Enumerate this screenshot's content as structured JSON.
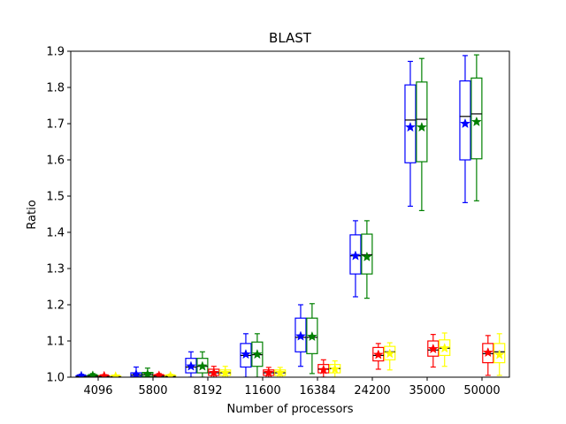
{
  "chart_data": {
    "type": "box",
    "title": "BLAST",
    "xlabel": "Number of processors",
    "ylabel": "Ratio",
    "ylim": [
      1.0,
      1.9
    ],
    "yticks": [
      "1.0",
      "1.1",
      "1.2",
      "1.3",
      "1.4",
      "1.5",
      "1.6",
      "1.7",
      "1.8",
      "1.9"
    ],
    "categories": [
      "4096",
      "5800",
      "8192",
      "11600",
      "16384",
      "24200",
      "35000",
      "50000"
    ],
    "grid": false,
    "legend": "none",
    "mean_marker": "star",
    "series": [
      {
        "color": "#0000ff",
        "boxes": [
          {
            "whislo": 1.0,
            "q1": 1.0,
            "med": 1.002,
            "q3": 1.004,
            "whishi": 1.008,
            "mean": 1.003
          },
          {
            "whislo": 1.0,
            "q1": 1.002,
            "med": 1.006,
            "q3": 1.012,
            "whishi": 1.028,
            "mean": 1.008
          },
          {
            "whislo": 1.0,
            "q1": 1.012,
            "med": 1.028,
            "q3": 1.052,
            "whishi": 1.07,
            "mean": 1.03
          },
          {
            "whislo": 1.0,
            "q1": 1.028,
            "med": 1.06,
            "q3": 1.093,
            "whishi": 1.12,
            "mean": 1.063
          },
          {
            "whislo": 1.03,
            "q1": 1.07,
            "med": 1.11,
            "q3": 1.163,
            "whishi": 1.2,
            "mean": 1.113
          },
          {
            "whislo": 1.222,
            "q1": 1.285,
            "med": 1.335,
            "q3": 1.393,
            "whishi": 1.432,
            "mean": 1.335
          },
          {
            "whislo": 1.472,
            "q1": 1.592,
            "med": 1.71,
            "q3": 1.807,
            "whishi": 1.872,
            "mean": 1.69
          },
          {
            "whislo": 1.482,
            "q1": 1.6,
            "med": 1.72,
            "q3": 1.818,
            "whishi": 1.888,
            "mean": 1.7
          }
        ]
      },
      {
        "color": "#008000",
        "boxes": [
          {
            "whislo": 1.0,
            "q1": 1.0,
            "med": 1.003,
            "q3": 1.005,
            "whishi": 1.01,
            "mean": 1.004
          },
          {
            "whislo": 1.0,
            "q1": 1.002,
            "med": 1.007,
            "q3": 1.013,
            "whishi": 1.025,
            "mean": 1.008
          },
          {
            "whislo": 1.0,
            "q1": 1.012,
            "med": 1.03,
            "q3": 1.052,
            "whishi": 1.07,
            "mean": 1.03
          },
          {
            "whislo": 1.0,
            "q1": 1.03,
            "med": 1.062,
            "q3": 1.097,
            "whishi": 1.12,
            "mean": 1.063
          },
          {
            "whislo": 1.01,
            "q1": 1.065,
            "med": 1.11,
            "q3": 1.163,
            "whishi": 1.203,
            "mean": 1.112
          },
          {
            "whislo": 1.218,
            "q1": 1.285,
            "med": 1.338,
            "q3": 1.395,
            "whishi": 1.432,
            "mean": 1.332
          },
          {
            "whislo": 1.46,
            "q1": 1.595,
            "med": 1.712,
            "q3": 1.815,
            "whishi": 1.88,
            "mean": 1.69
          },
          {
            "whislo": 1.487,
            "q1": 1.603,
            "med": 1.727,
            "q3": 1.826,
            "whishi": 1.89,
            "mean": 1.705
          }
        ]
      },
      {
        "color": "#ff0000",
        "boxes": [
          {
            "whislo": 1.0,
            "q1": 1.0,
            "med": 1.002,
            "q3": 1.004,
            "whishi": 1.007,
            "mean": 1.003
          },
          {
            "whislo": 1.0,
            "q1": 1.0,
            "med": 1.003,
            "q3": 1.006,
            "whishi": 1.01,
            "mean": 1.004
          },
          {
            "whislo": 1.0,
            "q1": 1.005,
            "med": 1.012,
            "q3": 1.022,
            "whishi": 1.03,
            "mean": 1.012
          },
          {
            "whislo": 1.0,
            "q1": 1.005,
            "med": 1.012,
            "q3": 1.02,
            "whishi": 1.027,
            "mean": 1.012
          },
          {
            "whislo": 1.0,
            "q1": 1.012,
            "med": 1.022,
            "q3": 1.035,
            "whishi": 1.048,
            "mean": 1.02
          },
          {
            "whislo": 1.022,
            "q1": 1.045,
            "med": 1.06,
            "q3": 1.082,
            "whishi": 1.093,
            "mean": 1.062
          },
          {
            "whislo": 1.028,
            "q1": 1.058,
            "med": 1.075,
            "q3": 1.1,
            "whishi": 1.118,
            "mean": 1.078
          },
          {
            "whislo": 1.005,
            "q1": 1.04,
            "med": 1.065,
            "q3": 1.093,
            "whishi": 1.115,
            "mean": 1.068
          }
        ]
      },
      {
        "color": "#ffff00",
        "boxes": [
          {
            "whislo": 1.0,
            "q1": 1.0,
            "med": 1.001,
            "q3": 1.003,
            "whishi": 1.006,
            "mean": 1.002
          },
          {
            "whislo": 1.0,
            "q1": 1.0,
            "med": 1.002,
            "q3": 1.005,
            "whishi": 1.008,
            "mean": 1.003
          },
          {
            "whislo": 1.0,
            "q1": 1.005,
            "med": 1.012,
            "q3": 1.02,
            "whishi": 1.03,
            "mean": 1.012
          },
          {
            "whislo": 1.0,
            "q1": 1.005,
            "med": 1.012,
            "q3": 1.02,
            "whishi": 1.027,
            "mean": 1.012
          },
          {
            "whislo": 1.0,
            "q1": 1.012,
            "med": 1.024,
            "q3": 1.035,
            "whishi": 1.045,
            "mean": 1.022
          },
          {
            "whislo": 1.02,
            "q1": 1.048,
            "med": 1.07,
            "q3": 1.085,
            "whishi": 1.095,
            "mean": 1.065
          },
          {
            "whislo": 1.03,
            "q1": 1.06,
            "med": 1.08,
            "q3": 1.103,
            "whishi": 1.122,
            "mean": 1.08
          },
          {
            "whislo": 1.005,
            "q1": 1.04,
            "med": 1.07,
            "q3": 1.093,
            "whishi": 1.12,
            "mean": 1.062
          }
        ]
      }
    ]
  }
}
